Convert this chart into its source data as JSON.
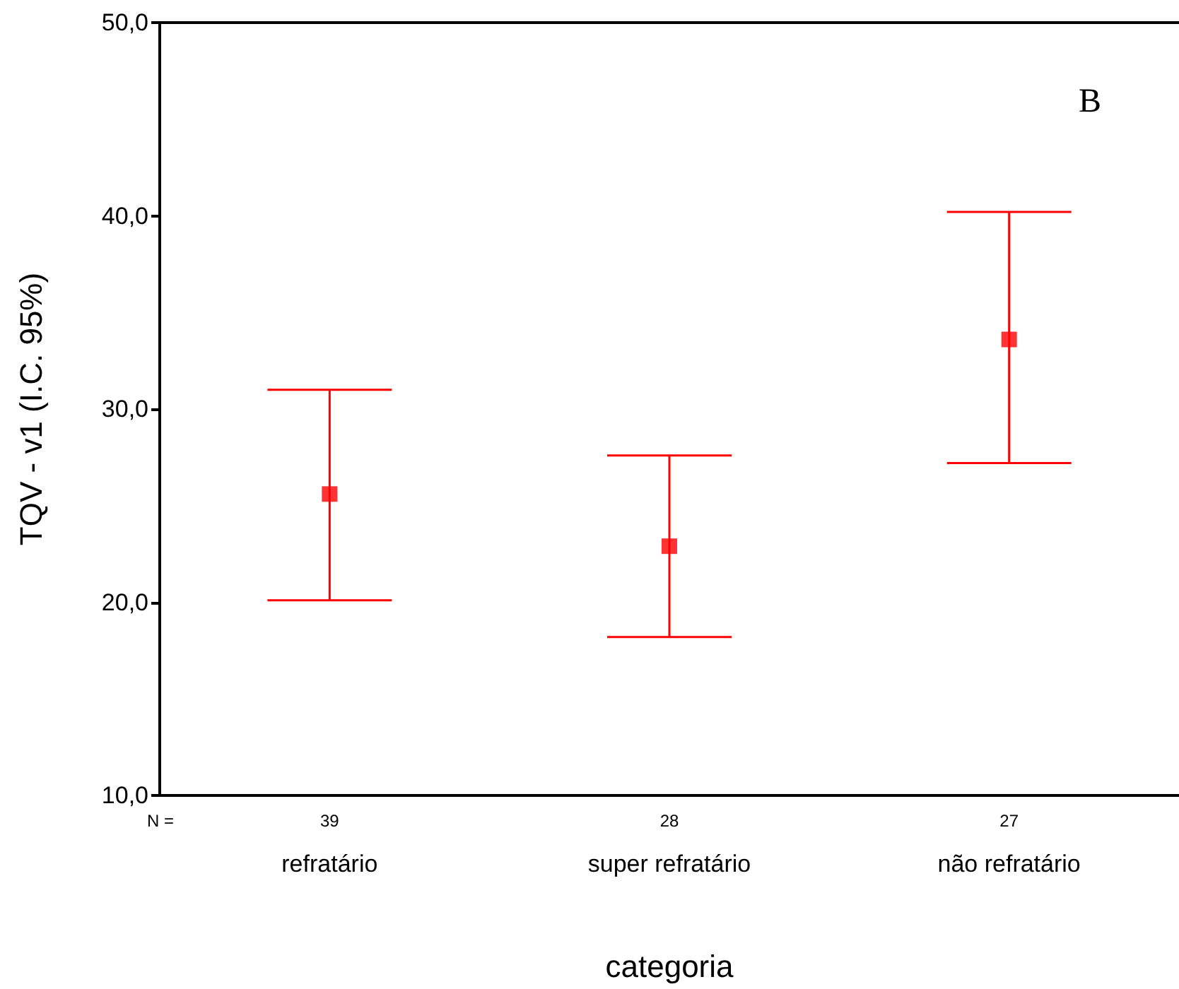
{
  "chart_data": {
    "type": "scatter",
    "xlabel": "categoria",
    "ylabel": "TQV - v1 (I.C. 95%)",
    "categories": [
      "refratário",
      "super refratário",
      "não refratário"
    ],
    "series": [
      {
        "color": "#ff0000",
        "values": [
          25.6,
          22.9,
          33.6
        ],
        "errors": [
          [
            20.1,
            31.0
          ],
          [
            18.2,
            27.6
          ],
          [
            27.2,
            40.2
          ]
        ]
      }
    ],
    "ylim": [
      10,
      50
    ],
    "yticks": [
      {
        "value": 10,
        "label": "10,0"
      },
      {
        "value": 20,
        "label": "20,0"
      },
      {
        "value": 30,
        "label": "30,0"
      },
      {
        "value": 40,
        "label": "40,0"
      },
      {
        "value": 50,
        "label": "50,0"
      }
    ],
    "marker": "square",
    "grid": false,
    "annotations": [
      "B",
      "N =",
      "39",
      "28",
      "27"
    ]
  }
}
